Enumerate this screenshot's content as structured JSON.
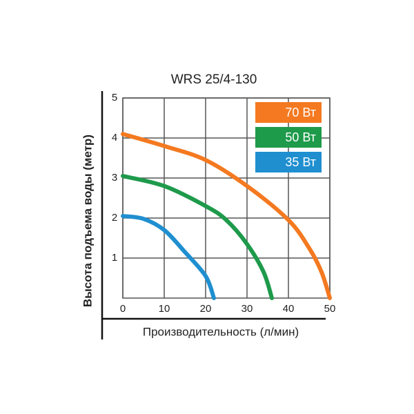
{
  "chart_data": {
    "type": "line",
    "title": "WRS 25/4-130",
    "x_label": "Производительность (л/мин)",
    "y_label": "Высота подъема воды (метр)",
    "xlim": [
      0,
      50
    ],
    "xticks": [
      0,
      10,
      20,
      30,
      40,
      50
    ],
    "ylim": [
      0,
      5
    ],
    "yticks": [
      1,
      2,
      3,
      4,
      5
    ],
    "grid": true,
    "legend": "upper right",
    "series": [
      {
        "name": "70 Вт",
        "color": "#f47920",
        "x": [
          0,
          10,
          20,
          30,
          40,
          45,
          48,
          50
        ],
        "values": [
          4.1,
          3.8,
          3.45,
          2.8,
          1.95,
          1.25,
          0.65,
          0
        ]
      },
      {
        "name": "50 Вт",
        "color": "#1e9a4b",
        "x": [
          0,
          10,
          20,
          25,
          30,
          34,
          36
        ],
        "values": [
          3.05,
          2.8,
          2.3,
          1.95,
          1.35,
          0.65,
          0
        ]
      },
      {
        "name": "35 Вт",
        "color": "#1f8fd0",
        "x": [
          0,
          5,
          10,
          15,
          20,
          22
        ],
        "values": [
          2.05,
          1.98,
          1.7,
          1.15,
          0.55,
          0
        ]
      }
    ]
  }
}
